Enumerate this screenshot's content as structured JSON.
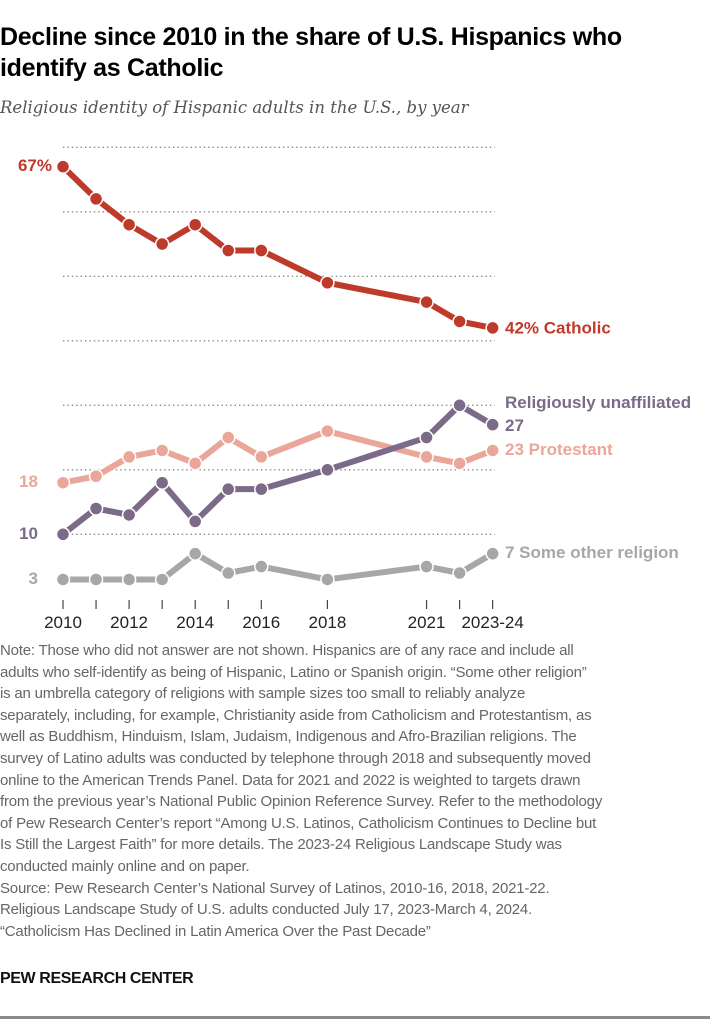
{
  "title_lines": [
    "Decline since 2010 in the share of U.S. Hispanics who",
    "identify as Catholic"
  ],
  "subtitle": "Religious identity of Hispanic adults in the U.S., by year",
  "chart_data": {
    "type": "line",
    "title": "Decline since 2010 in the share of U.S. Hispanics who identify as Catholic",
    "subtitle": "Religious identity of Hispanic adults in the U.S., by year",
    "x": [
      "2010",
      "2011",
      "2012",
      "2013",
      "2014",
      "2015",
      "2016",
      "2018",
      "2021",
      "2022",
      "2023-24"
    ],
    "x_positions": [
      2010,
      2011,
      2012,
      2013,
      2014,
      2015,
      2016,
      2018,
      2021,
      2022,
      2023
    ],
    "x_tick_labels": [
      "2010",
      "2012",
      "2014",
      "2016",
      "2018",
      "2021",
      "2023-24"
    ],
    "ylim": [
      0,
      70
    ],
    "gridlines": [
      70,
      60,
      50,
      40,
      30,
      20,
      10
    ],
    "grid": true,
    "unit": "%",
    "series": [
      {
        "name": "Catholic",
        "color": "#be3a2b",
        "values": [
          67,
          62,
          58,
          55,
          58,
          54,
          54,
          49,
          46,
          43,
          42
        ],
        "start_label": "67%",
        "end_label": "42% Catholic"
      },
      {
        "name": "Religiously unaffiliated",
        "color": "#7b6a88",
        "values": [
          10,
          14,
          13,
          18,
          12,
          17,
          17,
          20,
          25,
          30,
          27
        ],
        "start_label": "10",
        "end_label_name": "Religiously unaffiliated",
        "end_label": "27"
      },
      {
        "name": "Protestant",
        "color": "#eaa698",
        "values": [
          18,
          19,
          22,
          23,
          21,
          25,
          22,
          26,
          22,
          21,
          23
        ],
        "start_label": "18",
        "end_label": "23 Protestant"
      },
      {
        "name": "Some other religion",
        "color": "#a6a7a9",
        "values": [
          3,
          3,
          3,
          3,
          7,
          4,
          5,
          3,
          5,
          4,
          7
        ],
        "start_label": "3",
        "end_label": "7 Some other religion"
      }
    ]
  },
  "notes": [
    "Note: Those who did not answer are not shown. Hispanics are of any race and include all",
    "adults who self-identify as being of Hispanic, Latino or Spanish origin. “Some other religion”",
    "is an umbrella category of religions with sample sizes too small to reliably analyze",
    "separately, including, for example, Christianity aside from Catholicism and Protestantism, as",
    "well as Buddhism, Hinduism, Islam, Judaism, Indigenous and Afro-Brazilian religions. The",
    "survey of Latino adults was conducted by telephone through 2018 and subsequently moved",
    "online to the American Trends Panel. Data for 2021 and 2022 is weighted to targets drawn",
    "from the previous year’s National Public Opinion Reference Survey. Refer to the methodology",
    "of Pew Research Center’s report “Among U.S. Latinos, Catholicism Continues to Decline but",
    "Is Still the Largest Faith” for more details. The 2023-24 Religious Landscape Study was",
    "conducted mainly online and on paper.",
    "Source: Pew Research Center’s National Survey of Latinos, 2010-16, 2018, 2021-22.",
    "Religious Landscape Study of U.S. adults conducted July 17, 2023-March 4, 2024.",
    "“Catholicism Has Declined in Latin America Over the Past Decade”"
  ],
  "footer": "PEW RESEARCH CENTER"
}
